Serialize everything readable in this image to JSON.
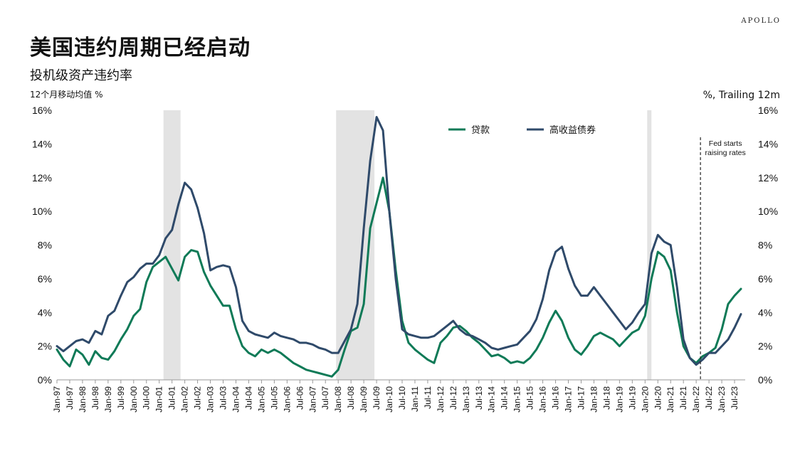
{
  "header": {
    "brand": "APOLLO",
    "title": "美国违约周期已经启动",
    "subtitle": "投机级资产违约率",
    "unit_left": "12个月移动均值 %",
    "unit_right": "%, Trailing 12m"
  },
  "chart_data": {
    "type": "line",
    "ylim": [
      0,
      16
    ],
    "y_ticks": [
      "0%",
      "2%",
      "4%",
      "6%",
      "8%",
      "10%",
      "12%",
      "14%",
      "16%"
    ],
    "x_ticks": [
      "Jan-97",
      "Jul-97",
      "Jan-98",
      "Jul-98",
      "Jan-99",
      "Jul-99",
      "Jan-00",
      "Jul-00",
      "Jan-01",
      "Jul-01",
      "Jan-02",
      "Jul-02",
      "Jan-03",
      "Jul-03",
      "Jan-04",
      "Jul-04",
      "Jan-05",
      "Jul-05",
      "Jan-06",
      "Jul-06",
      "Jan-07",
      "Jul-07",
      "Jan-08",
      "Jul-08",
      "Jan-09",
      "Jul-09",
      "Jan-10",
      "Jul-10",
      "Jan-11",
      "Jul-11",
      "Jan-12",
      "Jul-12",
      "Jan-13",
      "Jul-13",
      "Jan-14",
      "Jul-14",
      "Jan-15",
      "Jul-15",
      "Jan-16",
      "Jul-16",
      "Jan-17",
      "Jul-17",
      "Jan-18",
      "Jul-18",
      "Jan-19",
      "Jul-19",
      "Jan-20",
      "Jul-20",
      "Jan-21",
      "Jul-21",
      "Jan-22",
      "Jul-22",
      "Jan-23",
      "Jul-23"
    ],
    "x_range": [
      "Jan-97",
      "Dec-23"
    ],
    "legend_position": "top-center",
    "grid": false,
    "recessions": [
      {
        "start": "Mar-01",
        "end": "Nov-01"
      },
      {
        "start": "Dec-07",
        "end": "Jun-09"
      },
      {
        "start": "Feb-20",
        "end": "Apr-20"
      }
    ],
    "annotations": [
      {
        "x": "Mar-22",
        "text": [
          "Fed starts",
          "raising rates"
        ]
      }
    ],
    "series": [
      {
        "name": "贷款",
        "color": "#0f7a57",
        "points": [
          [
            "Jan-97",
            1.8
          ],
          [
            "Apr-97",
            1.2
          ],
          [
            "Jul-97",
            0.8
          ],
          [
            "Oct-97",
            1.8
          ],
          [
            "Jan-98",
            1.5
          ],
          [
            "Apr-98",
            0.9
          ],
          [
            "Jul-98",
            1.7
          ],
          [
            "Oct-98",
            1.3
          ],
          [
            "Jan-99",
            1.2
          ],
          [
            "Apr-99",
            1.7
          ],
          [
            "Jul-99",
            2.4
          ],
          [
            "Oct-99",
            3.0
          ],
          [
            "Jan-00",
            3.8
          ],
          [
            "Apr-00",
            4.2
          ],
          [
            "Jul-00",
            5.8
          ],
          [
            "Oct-00",
            6.7
          ],
          [
            "Jan-01",
            7.0
          ],
          [
            "Apr-01",
            7.3
          ],
          [
            "Jul-01",
            6.6
          ],
          [
            "Oct-01",
            5.9
          ],
          [
            "Jan-02",
            7.3
          ],
          [
            "Apr-02",
            7.7
          ],
          [
            "Jul-02",
            7.6
          ],
          [
            "Oct-02",
            6.4
          ],
          [
            "Jan-03",
            5.6
          ],
          [
            "Apr-03",
            5.0
          ],
          [
            "Jul-03",
            4.4
          ],
          [
            "Oct-03",
            4.4
          ],
          [
            "Jan-04",
            3.0
          ],
          [
            "Apr-04",
            2.0
          ],
          [
            "Jul-04",
            1.6
          ],
          [
            "Oct-04",
            1.4
          ],
          [
            "Jan-05",
            1.8
          ],
          [
            "Apr-05",
            1.6
          ],
          [
            "Jul-05",
            1.8
          ],
          [
            "Oct-05",
            1.6
          ],
          [
            "Jan-06",
            1.3
          ],
          [
            "Apr-06",
            1.0
          ],
          [
            "Jul-06",
            0.8
          ],
          [
            "Oct-06",
            0.6
          ],
          [
            "Jan-07",
            0.5
          ],
          [
            "Apr-07",
            0.4
          ],
          [
            "Jul-07",
            0.3
          ],
          [
            "Oct-07",
            0.2
          ],
          [
            "Jan-08",
            0.6
          ],
          [
            "Apr-08",
            1.8
          ],
          [
            "Jul-08",
            2.9
          ],
          [
            "Oct-08",
            3.1
          ],
          [
            "Jan-09",
            4.5
          ],
          [
            "Apr-09",
            9.0
          ],
          [
            "Jul-09",
            10.5
          ],
          [
            "Oct-09",
            12.0
          ],
          [
            "Jan-10",
            10.0
          ],
          [
            "Apr-10",
            6.5
          ],
          [
            "Jul-10",
            3.5
          ],
          [
            "Oct-10",
            2.2
          ],
          [
            "Jan-11",
            1.8
          ],
          [
            "Apr-11",
            1.5
          ],
          [
            "Jul-11",
            1.2
          ],
          [
            "Oct-11",
            1.0
          ],
          [
            "Jan-12",
            2.2
          ],
          [
            "Apr-12",
            2.6
          ],
          [
            "Jul-12",
            3.1
          ],
          [
            "Oct-12",
            3.2
          ],
          [
            "Jan-13",
            2.9
          ],
          [
            "Apr-13",
            2.5
          ],
          [
            "Jul-13",
            2.2
          ],
          [
            "Oct-13",
            1.8
          ],
          [
            "Jan-14",
            1.4
          ],
          [
            "Apr-14",
            1.5
          ],
          [
            "Jul-14",
            1.3
          ],
          [
            "Oct-14",
            1.0
          ],
          [
            "Jan-15",
            1.1
          ],
          [
            "Apr-15",
            1.0
          ],
          [
            "Jul-15",
            1.3
          ],
          [
            "Oct-15",
            1.8
          ],
          [
            "Jan-16",
            2.5
          ],
          [
            "Apr-16",
            3.4
          ],
          [
            "Jul-16",
            4.1
          ],
          [
            "Oct-16",
            3.5
          ],
          [
            "Jan-17",
            2.5
          ],
          [
            "Apr-17",
            1.8
          ],
          [
            "Jul-17",
            1.5
          ],
          [
            "Oct-17",
            2.0
          ],
          [
            "Jan-18",
            2.6
          ],
          [
            "Apr-18",
            2.8
          ],
          [
            "Jul-18",
            2.6
          ],
          [
            "Oct-18",
            2.4
          ],
          [
            "Jan-19",
            2.0
          ],
          [
            "Apr-19",
            2.4
          ],
          [
            "Jul-19",
            2.8
          ],
          [
            "Oct-19",
            3.0
          ],
          [
            "Jan-20",
            3.8
          ],
          [
            "Apr-20",
            6.0
          ],
          [
            "Jul-20",
            7.6
          ],
          [
            "Oct-20",
            7.3
          ],
          [
            "Jan-21",
            6.5
          ],
          [
            "Apr-21",
            4.0
          ],
          [
            "Jul-21",
            2.0
          ],
          [
            "Oct-21",
            1.3
          ],
          [
            "Jan-22",
            1.0
          ],
          [
            "Apr-22",
            1.4
          ],
          [
            "Jul-22",
            1.6
          ],
          [
            "Oct-22",
            1.9
          ],
          [
            "Jan-23",
            3.0
          ],
          [
            "Apr-23",
            4.5
          ],
          [
            "Jul-23",
            5.0
          ],
          [
            "Oct-23",
            5.4
          ]
        ]
      },
      {
        "name": "高收益债券",
        "color": "#2f4a6a",
        "points": [
          [
            "Jan-97",
            2.0
          ],
          [
            "Apr-97",
            1.7
          ],
          [
            "Jul-97",
            2.0
          ],
          [
            "Oct-97",
            2.3
          ],
          [
            "Jan-98",
            2.4
          ],
          [
            "Apr-98",
            2.2
          ],
          [
            "Jul-98",
            2.9
          ],
          [
            "Oct-98",
            2.7
          ],
          [
            "Jan-99",
            3.8
          ],
          [
            "Apr-99",
            4.1
          ],
          [
            "Jul-99",
            5.0
          ],
          [
            "Oct-99",
            5.8
          ],
          [
            "Jan-00",
            6.1
          ],
          [
            "Apr-00",
            6.6
          ],
          [
            "Jul-00",
            6.9
          ],
          [
            "Oct-00",
            6.9
          ],
          [
            "Jan-01",
            7.4
          ],
          [
            "Apr-01",
            8.4
          ],
          [
            "Jul-01",
            8.9
          ],
          [
            "Oct-01",
            10.4
          ],
          [
            "Jan-02",
            11.7
          ],
          [
            "Apr-02",
            11.3
          ],
          [
            "Jul-02",
            10.2
          ],
          [
            "Oct-02",
            8.7
          ],
          [
            "Jan-03",
            6.5
          ],
          [
            "Apr-03",
            6.7
          ],
          [
            "Jul-03",
            6.8
          ],
          [
            "Oct-03",
            6.7
          ],
          [
            "Jan-04",
            5.5
          ],
          [
            "Apr-04",
            3.5
          ],
          [
            "Jul-04",
            2.9
          ],
          [
            "Oct-04",
            2.7
          ],
          [
            "Jan-05",
            2.6
          ],
          [
            "Apr-05",
            2.5
          ],
          [
            "Jul-05",
            2.8
          ],
          [
            "Oct-05",
            2.6
          ],
          [
            "Jan-06",
            2.5
          ],
          [
            "Apr-06",
            2.4
          ],
          [
            "Jul-06",
            2.2
          ],
          [
            "Oct-06",
            2.2
          ],
          [
            "Jan-07",
            2.1
          ],
          [
            "Apr-07",
            1.9
          ],
          [
            "Jul-07",
            1.8
          ],
          [
            "Oct-07",
            1.6
          ],
          [
            "Jan-08",
            1.6
          ],
          [
            "Apr-08",
            2.3
          ],
          [
            "Jul-08",
            3.0
          ],
          [
            "Oct-08",
            4.5
          ],
          [
            "Jan-09",
            9.0
          ],
          [
            "Apr-09",
            13.0
          ],
          [
            "Jul-09",
            15.6
          ],
          [
            "Oct-09",
            14.8
          ],
          [
            "Jan-10",
            10.0
          ],
          [
            "Apr-10",
            6.0
          ],
          [
            "Jul-10",
            3.0
          ],
          [
            "Oct-10",
            2.7
          ],
          [
            "Jan-11",
            2.6
          ],
          [
            "Apr-11",
            2.5
          ],
          [
            "Jul-11",
            2.5
          ],
          [
            "Oct-11",
            2.6
          ],
          [
            "Jan-12",
            2.9
          ],
          [
            "Apr-12",
            3.2
          ],
          [
            "Jul-12",
            3.5
          ],
          [
            "Oct-12",
            3.0
          ],
          [
            "Jan-13",
            2.7
          ],
          [
            "Apr-13",
            2.6
          ],
          [
            "Jul-13",
            2.4
          ],
          [
            "Oct-13",
            2.2
          ],
          [
            "Jan-14",
            1.9
          ],
          [
            "Apr-14",
            1.8
          ],
          [
            "Jul-14",
            1.9
          ],
          [
            "Oct-14",
            2.0
          ],
          [
            "Jan-15",
            2.1
          ],
          [
            "Apr-15",
            2.5
          ],
          [
            "Jul-15",
            2.9
          ],
          [
            "Oct-15",
            3.6
          ],
          [
            "Jan-16",
            4.8
          ],
          [
            "Apr-16",
            6.5
          ],
          [
            "Jul-16",
            7.6
          ],
          [
            "Oct-16",
            7.9
          ],
          [
            "Jan-17",
            6.6
          ],
          [
            "Apr-17",
            5.6
          ],
          [
            "Jul-17",
            5.0
          ],
          [
            "Oct-17",
            5.0
          ],
          [
            "Jan-18",
            5.5
          ],
          [
            "Apr-18",
            5.0
          ],
          [
            "Jul-18",
            4.5
          ],
          [
            "Oct-18",
            4.0
          ],
          [
            "Jan-19",
            3.5
          ],
          [
            "Apr-19",
            3.0
          ],
          [
            "Jul-19",
            3.4
          ],
          [
            "Oct-19",
            4.0
          ],
          [
            "Jan-20",
            4.5
          ],
          [
            "Apr-20",
            7.5
          ],
          [
            "Jul-20",
            8.6
          ],
          [
            "Oct-20",
            8.2
          ],
          [
            "Jan-21",
            8.0
          ],
          [
            "Apr-21",
            5.5
          ],
          [
            "Jul-21",
            2.4
          ],
          [
            "Oct-21",
            1.3
          ],
          [
            "Jan-22",
            0.9
          ],
          [
            "Apr-22",
            1.2
          ],
          [
            "Jul-22",
            1.6
          ],
          [
            "Oct-22",
            1.6
          ],
          [
            "Jan-23",
            2.0
          ],
          [
            "Apr-23",
            2.4
          ],
          [
            "Jul-23",
            3.1
          ],
          [
            "Oct-23",
            3.9
          ]
        ]
      }
    ]
  }
}
